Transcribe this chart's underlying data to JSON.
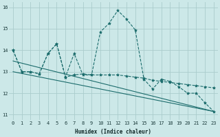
{
  "xlabel": "Humidex (Indice chaleur)",
  "background_color": "#cce8e8",
  "grid_color": "#aacccc",
  "line_color": "#1a6b6b",
  "xlim": [
    -0.5,
    23.5
  ],
  "ylim": [
    10.75,
    16.25
  ],
  "yticks": [
    11,
    12,
    13,
    14,
    15,
    16
  ],
  "xticks": [
    0,
    1,
    2,
    3,
    4,
    5,
    6,
    7,
    8,
    9,
    10,
    11,
    12,
    13,
    14,
    15,
    16,
    17,
    18,
    19,
    20,
    21,
    22,
    23
  ],
  "series": [
    {
      "x": [
        0,
        1,
        2,
        3,
        4,
        5,
        6,
        7,
        8,
        9,
        10,
        11,
        12,
        13,
        14,
        15,
        16,
        17,
        18,
        19,
        20,
        21,
        22,
        23
      ],
      "y": [
        14.0,
        13.0,
        13.0,
        12.9,
        13.85,
        14.3,
        12.75,
        13.85,
        12.85,
        12.85,
        14.85,
        15.25,
        15.85,
        15.45,
        14.95,
        12.65,
        12.2,
        12.65,
        12.55,
        12.3,
        12.0,
        12.0,
        11.55,
        11.15
      ],
      "marker": true
    },
    {
      "x": [
        0,
        1,
        2,
        3,
        4,
        5,
        6,
        7,
        8,
        9,
        10,
        11,
        12,
        13,
        14,
        15,
        16,
        17,
        18,
        19,
        20,
        21,
        22,
        23
      ],
      "y": [
        14.0,
        13.0,
        13.0,
        12.9,
        13.85,
        14.3,
        12.75,
        12.85,
        12.9,
        12.85,
        12.85,
        12.85,
        12.85,
        12.8,
        12.75,
        12.7,
        12.6,
        12.55,
        12.5,
        12.45,
        12.4,
        12.35,
        12.3,
        12.25
      ],
      "marker": true
    },
    {
      "x": [
        0,
        23
      ],
      "y": [
        13.5,
        11.15
      ],
      "marker": false
    },
    {
      "x": [
        0,
        23
      ],
      "y": [
        13.0,
        11.15
      ],
      "marker": false
    }
  ]
}
